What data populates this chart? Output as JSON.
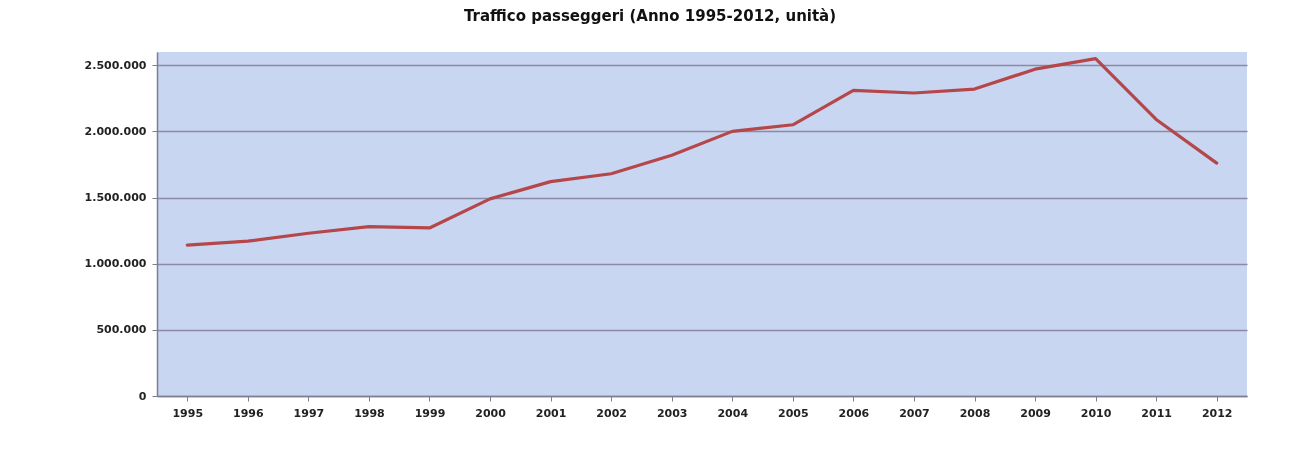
{
  "chart_data": {
    "type": "line",
    "title": "Traffico passeggeri (Anno 1995-2012, unità)",
    "categories": [
      "1995",
      "1996",
      "1997",
      "1998",
      "1999",
      "2000",
      "2001",
      "2002",
      "2003",
      "2004",
      "2005",
      "2006",
      "2007",
      "2008",
      "2009",
      "2010",
      "2011",
      "2012"
    ],
    "series": [
      {
        "color": "#b5474b",
        "values": [
          1140000,
          1170000,
          1230000,
          1280000,
          1270000,
          1490000,
          1620000,
          1680000,
          1820000,
          2000000,
          2050000,
          2310000,
          2290000,
          2320000,
          2470000,
          2550000,
          2090000,
          1760000
        ]
      }
    ],
    "ylim": [
      0,
      2600000
    ],
    "yticks": [
      0,
      {
        "value": 500000,
        "label": "500.000"
      },
      {
        "value": 1000000,
        "label": "1.000.000"
      },
      {
        "value": 1500000,
        "label": "1.500.000"
      },
      {
        "value": 2000000,
        "label": "2.000.000"
      },
      {
        "value": 2500000,
        "label": "2.500.000"
      }
    ],
    "grid": "y",
    "line_style": "solid"
  }
}
